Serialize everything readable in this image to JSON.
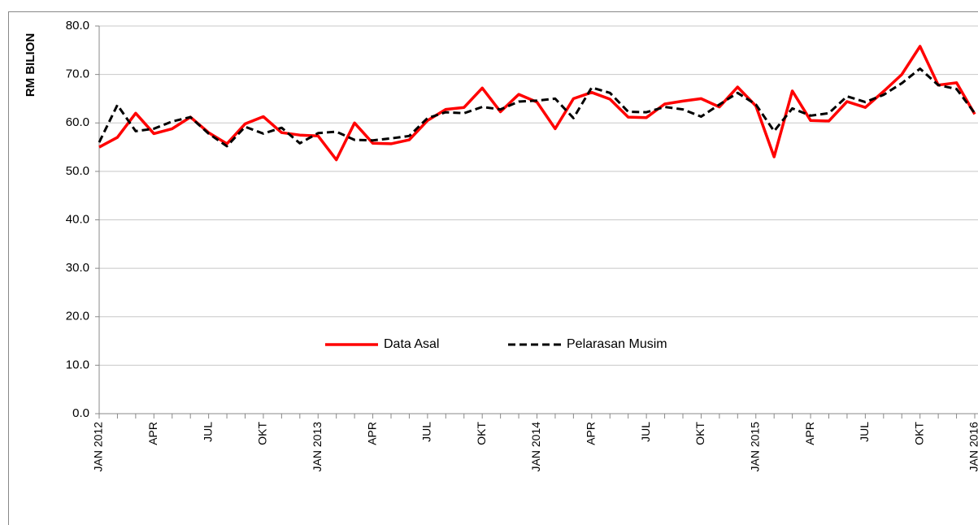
{
  "chart_data": {
    "type": "line",
    "ylabel": "RM BILION",
    "categories": [
      "JAN 2012",
      null,
      null,
      "APR",
      null,
      null,
      "JUL",
      null,
      null,
      "OKT",
      null,
      null,
      "JAN 2013",
      null,
      null,
      "APR",
      null,
      null,
      "JUL",
      null,
      null,
      "OKT",
      null,
      null,
      "JAN 2014",
      null,
      null,
      "APR",
      null,
      null,
      "JUL",
      null,
      null,
      "OKT",
      null,
      null,
      "JAN 2015",
      null,
      null,
      "APR",
      null,
      null,
      "JUL",
      null,
      null,
      "OKT",
      null,
      null,
      "JAN 2016"
    ],
    "series": [
      {
        "name": "Data Asal",
        "color": "#ff0000",
        "dash": false,
        "values": [
          55.0,
          57.0,
          62.0,
          57.8,
          58.8,
          61.2,
          58.0,
          55.7,
          59.8,
          61.3,
          58.0,
          57.5,
          57.3,
          52.4,
          60.0,
          55.8,
          55.7,
          56.5,
          60.5,
          62.8,
          63.2,
          67.2,
          62.3,
          65.9,
          64.3,
          58.8,
          65.0,
          66.3,
          64.9,
          61.2,
          61.1,
          63.9,
          64.5,
          65.0,
          63.3,
          67.4,
          63.5,
          53.0,
          66.6,
          60.5,
          60.4,
          64.4,
          63.2,
          66.5,
          70.0,
          75.8,
          67.8,
          68.3,
          61.8
        ]
      },
      {
        "name": "Pelarasan Musim",
        "color": "#000000",
        "dash": true,
        "values": [
          56.0,
          63.7,
          58.3,
          58.8,
          60.3,
          61.2,
          57.8,
          55.2,
          59.2,
          57.8,
          59.0,
          55.8,
          57.9,
          58.2,
          56.5,
          56.4,
          56.8,
          57.3,
          61.0,
          62.2,
          62.0,
          63.3,
          62.8,
          64.4,
          64.6,
          65.0,
          61.0,
          67.3,
          66.2,
          62.3,
          62.2,
          63.3,
          62.8,
          61.3,
          63.8,
          66.2,
          63.8,
          58.3,
          63.0,
          61.5,
          62.0,
          65.5,
          64.3,
          65.8,
          68.2,
          71.2,
          67.8,
          67.0,
          62.0
        ]
      }
    ],
    "ylim": [
      0,
      80
    ],
    "yticks": [
      {
        "value": 0,
        "label": "0.0"
      },
      {
        "value": 10,
        "label": "10.0"
      },
      {
        "value": 20,
        "label": "20.0"
      },
      {
        "value": 30,
        "label": "30.0"
      },
      {
        "value": 40,
        "label": "40.0"
      },
      {
        "value": 50,
        "label": "50.0"
      },
      {
        "value": 60,
        "label": "60.0"
      },
      {
        "value": 70,
        "label": "70.0"
      },
      {
        "value": 80,
        "label": "80.0"
      }
    ],
    "grid": true,
    "legend": "center"
  }
}
